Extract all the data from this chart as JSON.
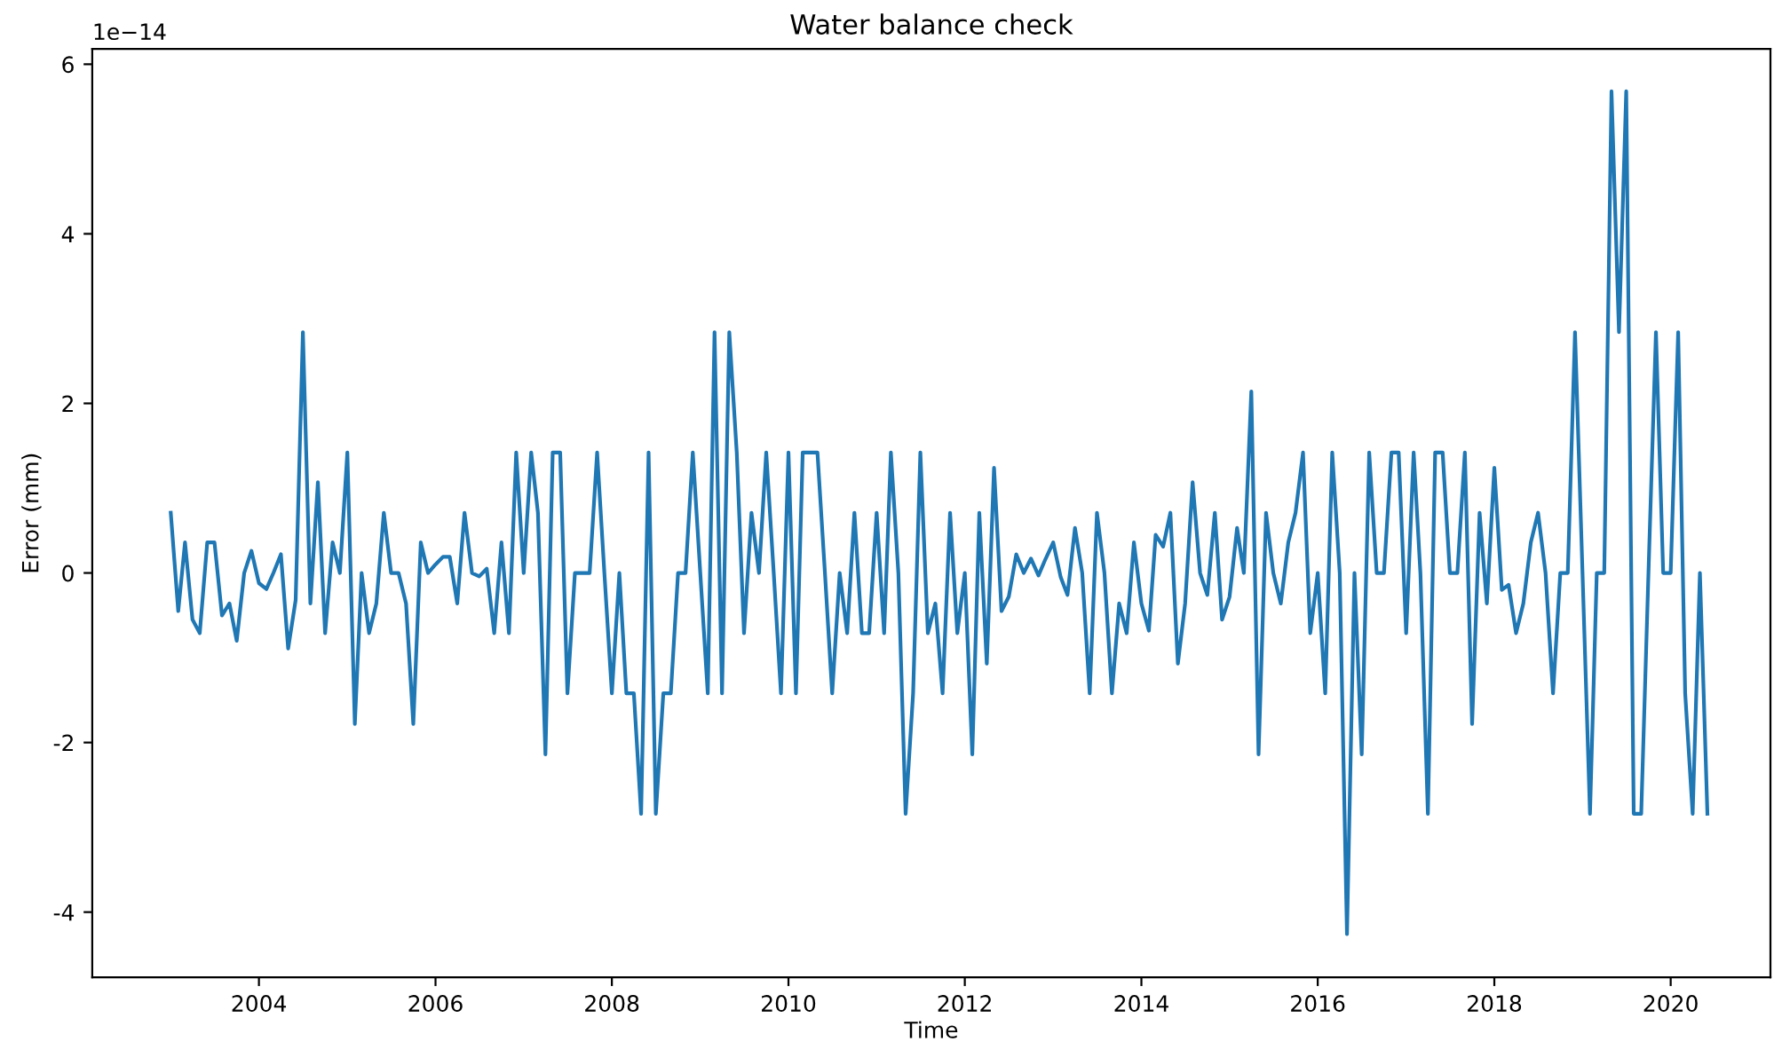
{
  "chart_data": {
    "type": "line",
    "title": "Water balance check",
    "xlabel": "Time",
    "ylabel": "Error (mm)",
    "annotations": [
      "1e−14"
    ],
    "x": [
      "2003-01",
      "2003-02",
      "2003-03",
      "2003-04",
      "2003-05",
      "2003-06",
      "2003-07",
      "2003-08",
      "2003-09",
      "2003-10",
      "2003-11",
      "2003-12",
      "2004-01",
      "2004-02",
      "2004-03",
      "2004-04",
      "2004-05",
      "2004-06",
      "2004-07",
      "2004-08",
      "2004-09",
      "2004-10",
      "2004-11",
      "2004-12",
      "2005-01",
      "2005-02",
      "2005-03",
      "2005-04",
      "2005-05",
      "2005-06",
      "2005-07",
      "2005-08",
      "2005-09",
      "2005-10",
      "2005-11",
      "2005-12",
      "2006-01",
      "2006-02",
      "2006-03",
      "2006-04",
      "2006-05",
      "2006-06",
      "2006-07",
      "2006-08",
      "2006-09",
      "2006-10",
      "2006-11",
      "2006-12",
      "2007-01",
      "2007-02",
      "2007-03",
      "2007-04",
      "2007-05",
      "2007-06",
      "2007-07",
      "2007-08",
      "2007-09",
      "2007-10",
      "2007-11",
      "2007-12",
      "2008-01",
      "2008-02",
      "2008-03",
      "2008-04",
      "2008-05",
      "2008-06",
      "2008-07",
      "2008-08",
      "2008-09",
      "2008-10",
      "2008-11",
      "2008-12",
      "2009-01",
      "2009-02",
      "2009-03",
      "2009-04",
      "2009-05",
      "2009-06",
      "2009-07",
      "2009-08",
      "2009-09",
      "2009-10",
      "2009-11",
      "2009-12",
      "2010-01",
      "2010-02",
      "2010-03",
      "2010-04",
      "2010-05",
      "2010-06",
      "2010-07",
      "2010-08",
      "2010-09",
      "2010-10",
      "2010-11",
      "2010-12",
      "2011-01",
      "2011-02",
      "2011-03",
      "2011-04",
      "2011-05",
      "2011-06",
      "2011-07",
      "2011-08",
      "2011-09",
      "2011-10",
      "2011-11",
      "2011-12",
      "2012-01",
      "2012-02",
      "2012-03",
      "2012-04",
      "2012-05",
      "2012-06",
      "2012-07",
      "2012-08",
      "2012-09",
      "2012-10",
      "2012-11",
      "2012-12",
      "2013-01",
      "2013-02",
      "2013-03",
      "2013-04",
      "2013-05",
      "2013-06",
      "2013-07",
      "2013-08",
      "2013-09",
      "2013-10",
      "2013-11",
      "2013-12",
      "2014-01",
      "2014-02",
      "2014-03",
      "2014-04",
      "2014-05",
      "2014-06",
      "2014-07",
      "2014-08",
      "2014-09",
      "2014-10",
      "2014-11",
      "2014-12",
      "2015-01",
      "2015-02",
      "2015-03",
      "2015-04",
      "2015-05",
      "2015-06",
      "2015-07",
      "2015-08",
      "2015-09",
      "2015-10",
      "2015-11",
      "2015-12",
      "2016-01",
      "2016-02",
      "2016-03",
      "2016-04",
      "2016-05",
      "2016-06",
      "2016-07",
      "2016-08",
      "2016-09",
      "2016-10",
      "2016-11",
      "2016-12",
      "2017-01",
      "2017-02",
      "2017-03",
      "2017-04",
      "2017-05",
      "2017-06",
      "2017-07",
      "2017-08",
      "2017-09",
      "2017-10",
      "2017-11",
      "2017-12",
      "2018-01",
      "2018-02",
      "2018-03",
      "2018-04",
      "2018-05",
      "2018-06",
      "2018-07",
      "2018-08",
      "2018-09",
      "2018-10",
      "2018-11",
      "2018-12",
      "2019-01",
      "2019-02",
      "2019-03",
      "2019-04",
      "2019-05",
      "2019-06",
      "2019-07",
      "2019-08",
      "2019-09",
      "2019-10",
      "2019-11",
      "2019-12",
      "2020-01",
      "2020-02",
      "2020-03",
      "2020-04",
      "2020-05",
      "2020-06"
    ],
    "series": [
      {
        "color": "#1f77b4",
        "values": [
          0.71,
          -0.45,
          0.36,
          -0.55,
          -0.71,
          0.36,
          0.36,
          -0.5,
          -0.36,
          -0.8,
          0,
          0.26,
          -0.12,
          -0.19,
          0,
          0.22,
          -0.89,
          -0.32,
          2.84,
          -0.36,
          1.07,
          -0.71,
          0.36,
          0,
          1.42,
          -1.78,
          0,
          -0.71,
          -0.36,
          0.71,
          0,
          0,
          -0.36,
          -1.78,
          0.36,
          0,
          0.1,
          0.19,
          0.19,
          -0.36,
          0.71,
          0,
          -0.04,
          0.05,
          -0.71,
          0.36,
          -0.71,
          1.42,
          0,
          1.42,
          0.71,
          -2.14,
          1.42,
          1.42,
          -1.42,
          0,
          0,
          0,
          1.42,
          0,
          -1.42,
          0,
          -1.42,
          -1.42,
          -2.84,
          1.42,
          -2.84,
          -1.42,
          -1.42,
          0,
          0,
          1.42,
          0,
          -1.42,
          2.84,
          -1.42,
          2.84,
          1.42,
          -0.71,
          0.71,
          0,
          1.42,
          0,
          -1.42,
          1.42,
          -1.42,
          1.42,
          1.42,
          1.42,
          0,
          -1.42,
          0,
          -0.71,
          0.71,
          -0.71,
          -0.71,
          0.71,
          -0.71,
          1.42,
          0,
          -2.84,
          -1.42,
          1.42,
          -0.71,
          -0.36,
          -1.42,
          0.71,
          -0.71,
          0,
          -2.14,
          0.71,
          -1.07,
          1.24,
          -0.45,
          -0.28,
          0.22,
          0,
          0.17,
          -0.03,
          0.17,
          0.36,
          -0.05,
          -0.26,
          0.53,
          0,
          -1.42,
          0.71,
          0,
          -1.42,
          -0.36,
          -0.71,
          0.36,
          -0.36,
          -0.68,
          0.45,
          0.31,
          0.71,
          -1.07,
          -0.36,
          1.07,
          0,
          -0.26,
          0.71,
          -0.55,
          -0.28,
          0.53,
          0,
          2.14,
          -2.14,
          0.71,
          0,
          -0.36,
          0.36,
          0.71,
          1.42,
          -0.71,
          0,
          -1.42,
          1.42,
          0,
          -4.26,
          0,
          -2.14,
          1.42,
          0,
          0,
          1.42,
          1.42,
          -0.71,
          1.42,
          0,
          -2.84,
          1.42,
          1.42,
          0,
          0,
          1.42,
          -1.78,
          0.71,
          -0.36,
          1.24,
          -0.2,
          -0.14,
          -0.71,
          -0.36,
          0.36,
          0.71,
          0,
          -1.42,
          0,
          0,
          2.84,
          0,
          -2.84,
          0,
          0,
          5.68,
          2.84,
          5.68,
          -2.84,
          -2.84,
          0,
          2.84,
          0,
          0,
          2.84,
          -1.42,
          -2.84,
          0,
          -2.84
        ]
      }
    ],
    "xlim": [
      "2002-02-10",
      "2021-02-17"
    ],
    "xticks": [
      "2004",
      "2006",
      "2008",
      "2010",
      "2012",
      "2014",
      "2016",
      "2018",
      "2020"
    ],
    "ylim": [
      -4.77,
      6.18
    ],
    "yticks": [
      -4,
      -2,
      0,
      2,
      4,
      6
    ],
    "grid": false
  }
}
